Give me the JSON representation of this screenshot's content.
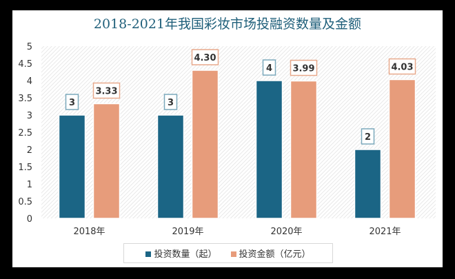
{
  "chart_data": {
    "type": "bar",
    "title": "2018-2021年我国彩妆市场投融资数量及金额",
    "categories": [
      "2018年",
      "2019年",
      "2020年",
      "2021年"
    ],
    "series": [
      {
        "name": "投资数量（起）",
        "values": [
          3,
          3,
          4,
          2
        ],
        "labels": [
          "3",
          "3",
          "4",
          "2"
        ],
        "color": "#1b6585"
      },
      {
        "name": "投资金额（亿元）",
        "values": [
          3.33,
          4.3,
          3.99,
          4.03
        ],
        "labels": [
          "3.33",
          "4.30",
          "3.99",
          "4.03"
        ],
        "color": "#e79c7b"
      }
    ],
    "yticks": [
      "0",
      "0.5",
      "1",
      "1.5",
      "2",
      "2.5",
      "3",
      "3.5",
      "4",
      "4.5",
      "5"
    ],
    "ylim": [
      0,
      5
    ],
    "grid": false,
    "legend": "bottom"
  }
}
